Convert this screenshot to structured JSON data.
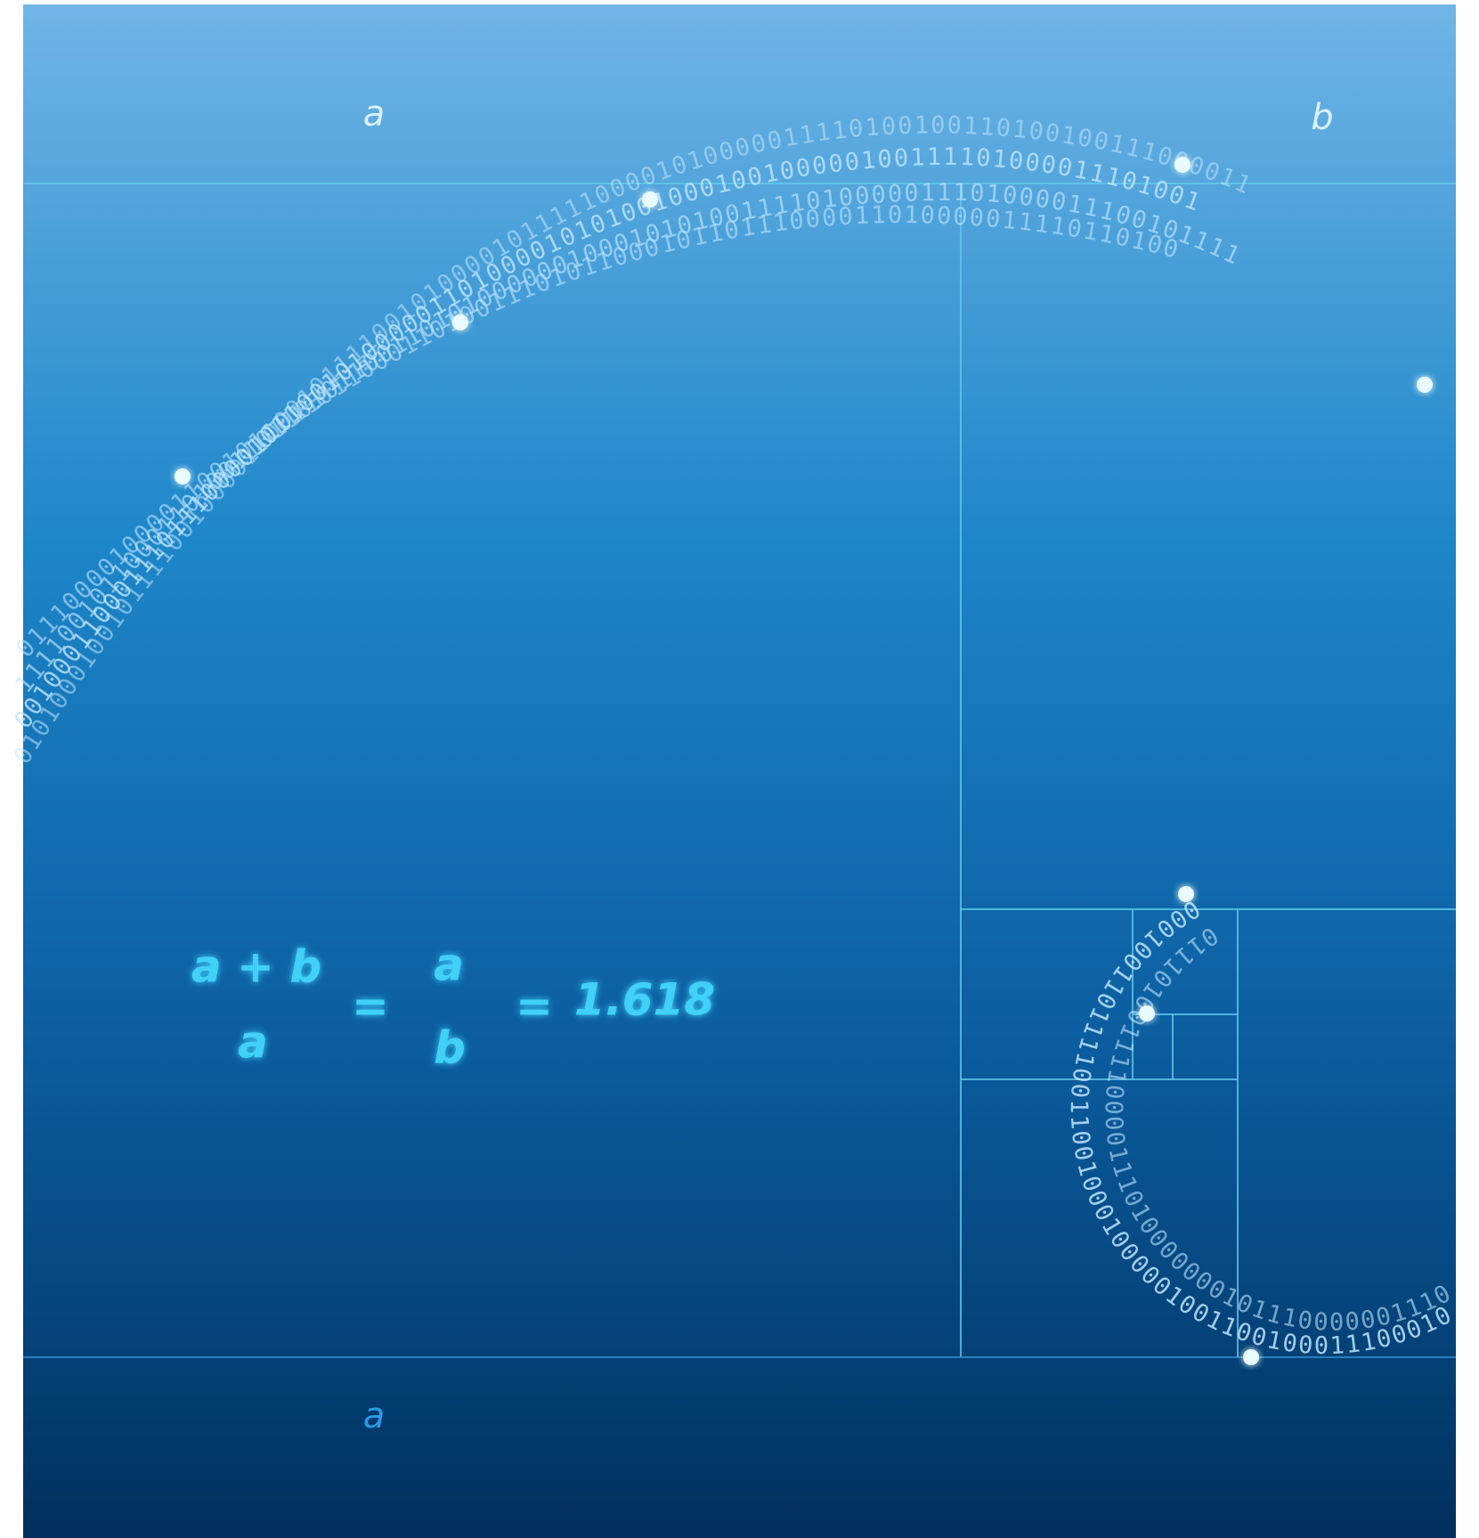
{
  "labels": {
    "top_a": "a",
    "top_b": "b",
    "bottom_a": "a"
  },
  "equation": {
    "numerator_1": "a + b",
    "denominator_1": "a",
    "equals_1": "=",
    "numerator_2": "a",
    "denominator_2": "b",
    "equals_2": "=",
    "result": "1.618"
  },
  "binary": [
    "0101000100101111001000011000101111001010000101111100001010000011110100100110100100111000011",
    "0010001100011101110000101100101000001101000010101001000100100000100111101000011101001",
    "1111001011000110100110110101100110101000000100010101001111010000011101000011100101111",
    "0111000010000110010110110110001101001110101100010110111000011010000011110110100",
    "00010011011110011001000100000100110010001110001011000001110000",
    "011101001111000011101000000010111000000111001001"
  ]
}
